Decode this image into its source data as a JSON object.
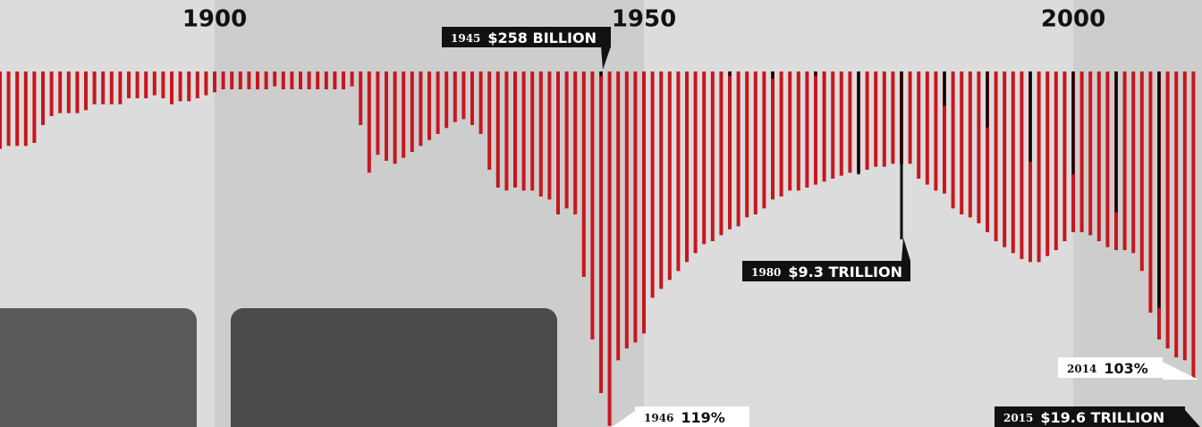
{
  "chart_data": {
    "type": "bar",
    "xlim": [
      1875,
      2015
    ],
    "xticks": [
      1900,
      1950,
      2000
    ],
    "ylim": [
      0,
      120
    ],
    "y2lim": [
      0,
      20
    ],
    "x": [
      1875,
      1876,
      1877,
      1878,
      1879,
      1880,
      1881,
      1882,
      1883,
      1884,
      1885,
      1886,
      1887,
      1888,
      1889,
      1890,
      1891,
      1892,
      1893,
      1894,
      1895,
      1896,
      1897,
      1898,
      1899,
      1900,
      1901,
      1902,
      1903,
      1904,
      1905,
      1906,
      1907,
      1908,
      1909,
      1910,
      1911,
      1912,
      1913,
      1914,
      1915,
      1916,
      1917,
      1918,
      1919,
      1920,
      1921,
      1922,
      1923,
      1924,
      1925,
      1926,
      1927,
      1928,
      1929,
      1930,
      1931,
      1932,
      1933,
      1934,
      1935,
      1936,
      1937,
      1938,
      1939,
      1940,
      1941,
      1942,
      1943,
      1944,
      1945,
      1946,
      1947,
      1948,
      1949,
      1950,
      1951,
      1952,
      1953,
      1954,
      1955,
      1956,
      1957,
      1958,
      1959,
      1960,
      1961,
      1962,
      1963,
      1964,
      1965,
      1966,
      1967,
      1968,
      1969,
      1970,
      1971,
      1972,
      1973,
      1974,
      1975,
      1976,
      1977,
      1978,
      1979,
      1980,
      1981,
      1982,
      1983,
      1984,
      1985,
      1986,
      1987,
      1988,
      1989,
      1990,
      1991,
      1992,
      1993,
      1994,
      1995,
      1996,
      1997,
      1998,
      1999,
      2000,
      2001,
      2002,
      2003,
      2004,
      2005,
      2006,
      2007,
      2008,
      2009,
      2010,
      2011,
      2012,
      2013,
      2014
    ],
    "series": [
      {
        "color": "#c8161d",
        "values": [
          26,
          25,
          25,
          25,
          24,
          18,
          15,
          14,
          14,
          14,
          13,
          11,
          11,
          11,
          11,
          9,
          9,
          9,
          8,
          9,
          11,
          10,
          10,
          9,
          8,
          7,
          6,
          6,
          6,
          6,
          6,
          6,
          5,
          6,
          6,
          6,
          6,
          6,
          6,
          6,
          6,
          5,
          18,
          34,
          28,
          30,
          31,
          29,
          27,
          25,
          23,
          21,
          19,
          17,
          16,
          18,
          21,
          33,
          39,
          40,
          39,
          40,
          40,
          42,
          43,
          48,
          46,
          48,
          69,
          90,
          108,
          119,
          97,
          93,
          91,
          88,
          76,
          73,
          70,
          67,
          64,
          61,
          58,
          57,
          55,
          53,
          52,
          49,
          48,
          46,
          43,
          42,
          40,
          40,
          39,
          38,
          37,
          36,
          35,
          34,
          34,
          33,
          32,
          32,
          31,
          31,
          31,
          36,
          38,
          40,
          41,
          46,
          48,
          49,
          51,
          54,
          57,
          59,
          61,
          63,
          64,
          64,
          62,
          60,
          57,
          54,
          54,
          55,
          57,
          59,
          60,
          60,
          61,
          67,
          81,
          90,
          93,
          96,
          97,
          103
        ]
      },
      {
        "color": "#000000",
        "axis": "y2",
        "x": [
          1945,
          1960,
          1965,
          1970,
          1975,
          1980,
          1985,
          1990,
          1995,
          2000,
          2005,
          2010
        ],
        "values": [
          0.258,
          0.25,
          0.4,
          0.25,
          5.7,
          9.3,
          1.9,
          3.1,
          5.0,
          5.7,
          7.8,
          13.1
        ]
      }
    ],
    "annotations": [
      {
        "year": "1945",
        "label": "$258 BILLION"
      },
      {
        "year": "1980",
        "label": "$9.3 TRILLION"
      },
      {
        "year": "1946",
        "label": "119%"
      },
      {
        "year": "2014",
        "label": "103%"
      },
      {
        "year": "2015",
        "label": "$19.6 TRILLION"
      }
    ]
  }
}
